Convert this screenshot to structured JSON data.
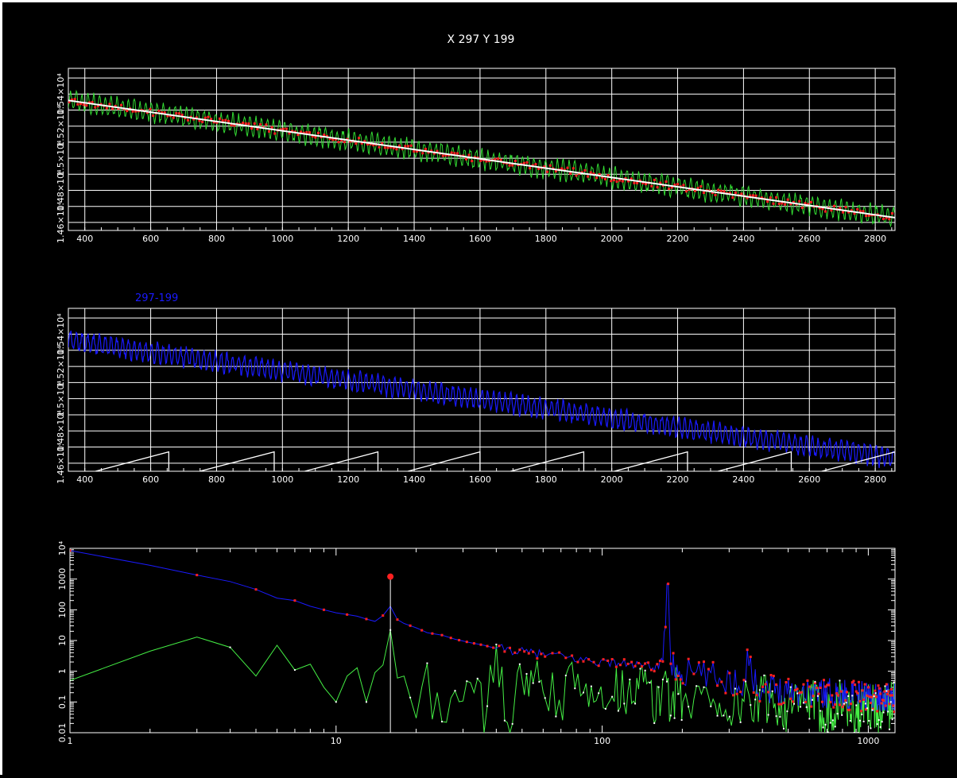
{
  "title": "X 297 Y 199",
  "colors": {
    "background": "#000000",
    "grid": "#ffffff",
    "data_red": "#ff2020",
    "data_green": "#33dd33",
    "fit_white": "#ffffff",
    "series_blue": "#1a1aff",
    "sawtooth_white": "#ffffff",
    "spectrum_green": "#44ee44",
    "peak_marker": "#ff2020"
  },
  "chart_data": [
    {
      "type": "line",
      "panel": "top",
      "title": "X 297 Y 199",
      "xlim": [
        350,
        2860
      ],
      "ylim": [
        14550,
        15560
      ],
      "x_ticks": [
        400,
        600,
        800,
        1000,
        1200,
        1400,
        1600,
        1800,
        2000,
        2200,
        2400,
        2600,
        2800
      ],
      "y_ticks": [
        14600,
        14700,
        14800,
        14900,
        15000,
        15100,
        15200,
        15300,
        15400,
        15500
      ],
      "y_tick_labels": [
        {
          "value": 14600,
          "label": "1.46×10⁴"
        },
        {
          "value": 14800,
          "label": "1.48×10⁴"
        },
        {
          "value": 15000,
          "label": "1.5×10⁴"
        },
        {
          "value": 15200,
          "label": "1.52×10⁴"
        },
        {
          "value": 15400,
          "label": "1.54×10⁴"
        }
      ],
      "series": [
        {
          "role": "data",
          "line_color": "#33dd33",
          "marker_color": "#ff2020",
          "trend_start": [
            350,
            15360
          ],
          "trend_end": [
            2860,
            14630
          ],
          "oscillation_amplitude": 55,
          "oscillation_period": 17.6
        },
        {
          "role": "fit",
          "color": "#ffffff",
          "x": [
            350,
            2860
          ],
          "y": [
            15360,
            14630
          ]
        }
      ]
    },
    {
      "type": "line",
      "panel": "middle",
      "legend": "297-199",
      "xlim": [
        350,
        2860
      ],
      "ylim": [
        14550,
        15560
      ],
      "x_ticks": [
        400,
        600,
        800,
        1000,
        1200,
        1400,
        1600,
        1800,
        2000,
        2200,
        2400,
        2600,
        2800
      ],
      "y_ticks": [
        14600,
        14700,
        14800,
        14900,
        15000,
        15100,
        15200,
        15300,
        15400,
        15500
      ],
      "y_tick_labels": [
        {
          "value": 14600,
          "label": "1.46×10⁴"
        },
        {
          "value": 14800,
          "label": "1.48×10⁴"
        },
        {
          "value": 15000,
          "label": "1.5×10⁴"
        },
        {
          "value": 15200,
          "label": "1.52×10⁴"
        },
        {
          "value": 15400,
          "label": "1.54×10⁴"
        }
      ],
      "series": [
        {
          "role": "signal",
          "name": "297-199",
          "color": "#1a1aff",
          "trend_start": [
            350,
            15360
          ],
          "trend_end": [
            2860,
            14630
          ],
          "oscillation_amplitude": 55,
          "oscillation_period": 17.6
        },
        {
          "role": "sawtooth",
          "color": "#ffffff",
          "reset_points": [
            655,
            975,
            1290,
            1600,
            1915,
            2230,
            2545,
            2860
          ],
          "low": 14500,
          "high": 14670
        }
      ]
    },
    {
      "type": "line",
      "panel": "bottom",
      "xscale": "log",
      "yscale": "log",
      "xlim": [
        1,
        1260
      ],
      "ylim": [
        0.01,
        10000
      ],
      "x_ticks": [
        1,
        10,
        100,
        1000
      ],
      "x_tick_labels": [
        "1",
        "10",
        "100",
        "1000"
      ],
      "y_ticks": [
        0.01,
        0.1,
        1,
        10,
        100,
        1000,
        10000
      ],
      "y_tick_labels": [
        "0.01",
        "0.1",
        "1",
        "10",
        "100",
        "1000",
        "10⁴"
      ],
      "peak_marker": {
        "x": 16,
        "y": 1200
      },
      "series": [
        {
          "role": "spectrum",
          "color": "#1a1aff",
          "marker_color": "#ff2020",
          "x": [
            1,
            2,
            3,
            4,
            5,
            6,
            7,
            8,
            9,
            10,
            11,
            12,
            13,
            14,
            15,
            16,
            17,
            18,
            20,
            22,
            25,
            28,
            32,
            36,
            40,
            45,
            50,
            60,
            70,
            80,
            90,
            100,
            120,
            140,
            160,
            170,
            176,
            180,
            190,
            200,
            250,
            300,
            340,
            353,
            370,
            400,
            500,
            600,
            700,
            800,
            900,
            1000,
            1100,
            1260
          ],
          "y": [
            8500,
            2800,
            1350,
            830,
            460,
            240,
            200,
            130,
            100,
            80,
            70,
            62,
            50,
            42,
            65,
            130,
            48,
            36,
            26,
            18,
            15,
            11,
            8.5,
            7,
            5.5,
            5,
            4.2,
            3.5,
            3,
            2.5,
            2.2,
            2,
            1.8,
            1.5,
            1.3,
            3,
            700,
            2,
            1.1,
            0.9,
            0.7,
            0.5,
            0.4,
            5,
            0.4,
            0.3,
            0.25,
            0.22,
            0.2,
            0.18,
            0.16,
            0.15,
            0.14,
            0.13
          ]
        },
        {
          "role": "residual",
          "color": "#44ee44",
          "x": [
            1,
            2,
            3,
            4,
            5,
            6,
            7,
            8,
            9,
            10,
            11,
            12,
            13,
            14,
            15,
            16,
            17,
            18,
            20,
            22,
            25,
            28,
            32,
            36,
            40,
            45,
            50,
            60,
            70,
            80,
            90,
            100,
            120,
            140,
            160,
            170,
            176,
            180,
            190,
            200,
            250,
            300,
            340,
            353,
            370,
            400,
            500,
            600,
            700,
            800,
            900,
            1000,
            1100,
            1260
          ],
          "y": [
            0.5,
            4.5,
            13,
            6,
            0.7,
            7,
            1.1,
            1.7,
            0.3,
            0.1,
            0.7,
            1.3,
            0.1,
            0.9,
            1.6,
            22,
            0.6,
            0.7,
            0.03,
            0.6,
            0.01,
            0.5,
            0.3,
            0.05,
            1.2,
            0.04,
            0.6,
            0.3,
            0.1,
            0.7,
            0.05,
            0.4,
            0.2,
            0.6,
            0.05,
            0.5,
            1.5,
            0.04,
            0.3,
            0.08,
            0.2,
            0.05,
            0.1,
            0.6,
            0.04,
            0.15,
            0.06,
            0.1,
            0.05,
            0.12,
            0.03,
            0.08,
            0.05,
            0.1
          ]
        }
      ]
    }
  ]
}
